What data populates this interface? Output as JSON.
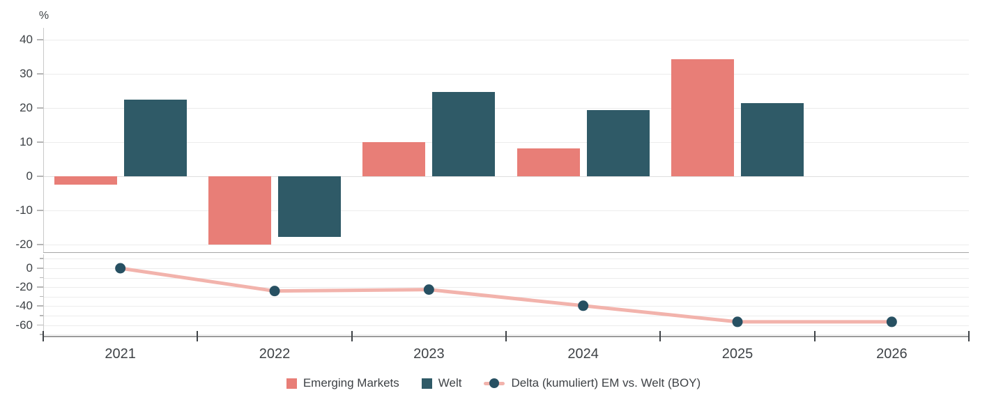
{
  "unit_label": "%",
  "colors": {
    "emerging_markets": "#e87e77",
    "welt": "#2f5a67",
    "delta_line": "#f2b3ac",
    "delta_dot": "#275062"
  },
  "legend": [
    {
      "label": "Emerging Markets",
      "type": "square",
      "color": "#e87e77"
    },
    {
      "label": "Welt",
      "type": "square",
      "color": "#2f5a67"
    },
    {
      "label": "Delta (kumuliert) EM vs. Welt (BOY)",
      "type": "line-dot",
      "line_color": "#f2b3ac",
      "dot_color": "#275062"
    }
  ],
  "chart_data": [
    {
      "type": "bar",
      "panel": "top",
      "title": "",
      "ylabel": "%",
      "categories": [
        "2021",
        "2022",
        "2023",
        "2024",
        "2025",
        "2026"
      ],
      "series": [
        {
          "name": "Emerging Markets",
          "color": "#e87e77",
          "values": [
            -2.4,
            -20,
            10.1,
            8.1,
            34.3,
            null
          ]
        },
        {
          "name": "Welt",
          "color": "#2f5a67",
          "values": [
            22.4,
            -17.8,
            24.6,
            19.3,
            21.5,
            null
          ]
        }
      ],
      "ylim": [
        -22.5,
        43.5
      ],
      "yticks": [
        40,
        30,
        20,
        10,
        0,
        -10,
        -20
      ],
      "grid": true,
      "legend_position": "bottom"
    },
    {
      "type": "line",
      "panel": "bottom",
      "categories": [
        "2021",
        "2022",
        "2023",
        "2024",
        "2025",
        "2026"
      ],
      "series": [
        {
          "name": "Delta (kumuliert) EM vs. Welt (BOY)",
          "line_color": "#f2b3ac",
          "dot_color": "#275062",
          "values": [
            0,
            -24,
            -22.5,
            -39.5,
            -56.5,
            -56.5
          ]
        }
      ],
      "ylim": [
        -71,
        15
      ],
      "yticks_labeled": [
        0,
        -20,
        -40,
        -60
      ],
      "yticks_minor": [
        10,
        -10,
        -30,
        -50,
        -70
      ],
      "grid": true
    }
  ]
}
